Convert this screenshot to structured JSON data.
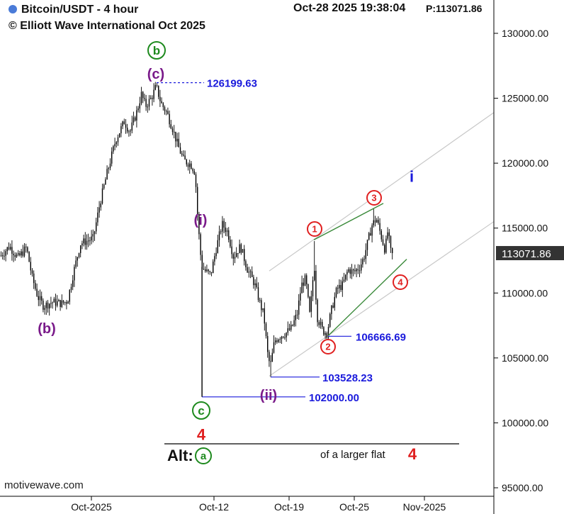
{
  "header": {
    "title": "Bitcoin/USDT - 4 hour",
    "copyright": "© Elliott Wave International Oct 2025",
    "timestamp": "Oct-28 2025  19:38:04",
    "price_readout": "P:113071.86"
  },
  "watermark": "motivewave.com",
  "colors": {
    "candle": "#000000",
    "level": "#1a1adc",
    "wave_green": "#1e8a1e",
    "wave_purple": "#7a1a8a",
    "wave_red": "#e02020",
    "channel": "#c8c8c8",
    "trend": "#3a8a3a",
    "last_tag": "#333333"
  },
  "chart_data": {
    "type": "candlestick",
    "y_axis_ticks": [
      "130000.00",
      "125000.00",
      "120000.00",
      "115000.00",
      "110000.00",
      "105000.00",
      "100000.00",
      "95000.00"
    ],
    "y_axis_values": [
      130000,
      125000,
      120000,
      115000,
      110000,
      105000,
      100000,
      95000
    ],
    "x_axis_ticks": [
      "Oct-2025",
      "Oct-12",
      "Oct-19",
      "Oct-25",
      "Nov-2025"
    ],
    "ylim": [
      94300,
      133200
    ],
    "last_price_label": "113071.86",
    "last_price": 113071.86,
    "levels": [
      {
        "label": "126199.63",
        "value": 126199.63
      },
      {
        "label": "106666.69",
        "value": 106666.69
      },
      {
        "label": "103528.23",
        "value": 103528.23
      },
      {
        "label": "102000.00",
        "value": 102000.0
      }
    ],
    "wave_labels": [
      {
        "text": "b",
        "circled": true,
        "color": "green"
      },
      {
        "text": "(c)",
        "circled": false,
        "color": "purple"
      },
      {
        "text": "(b)",
        "circled": false,
        "color": "purple"
      },
      {
        "text": "(i)",
        "circled": false,
        "color": "purple"
      },
      {
        "text": "(ii)",
        "circled": false,
        "color": "purple"
      },
      {
        "text": "c",
        "circled": true,
        "color": "green"
      },
      {
        "text": "4",
        "circled": false,
        "color": "red"
      },
      {
        "text": "1",
        "circled": true,
        "color": "red"
      },
      {
        "text": "2",
        "circled": true,
        "color": "red"
      },
      {
        "text": "3",
        "circled": true,
        "color": "red"
      },
      {
        "text": "4",
        "circled": true,
        "color": "red"
      },
      {
        "text": "i",
        "circled": false,
        "color": "blue"
      }
    ],
    "alt": {
      "prefix": "Alt:",
      "wave": "a",
      "text": "of a larger flat",
      "degree": "4"
    }
  }
}
